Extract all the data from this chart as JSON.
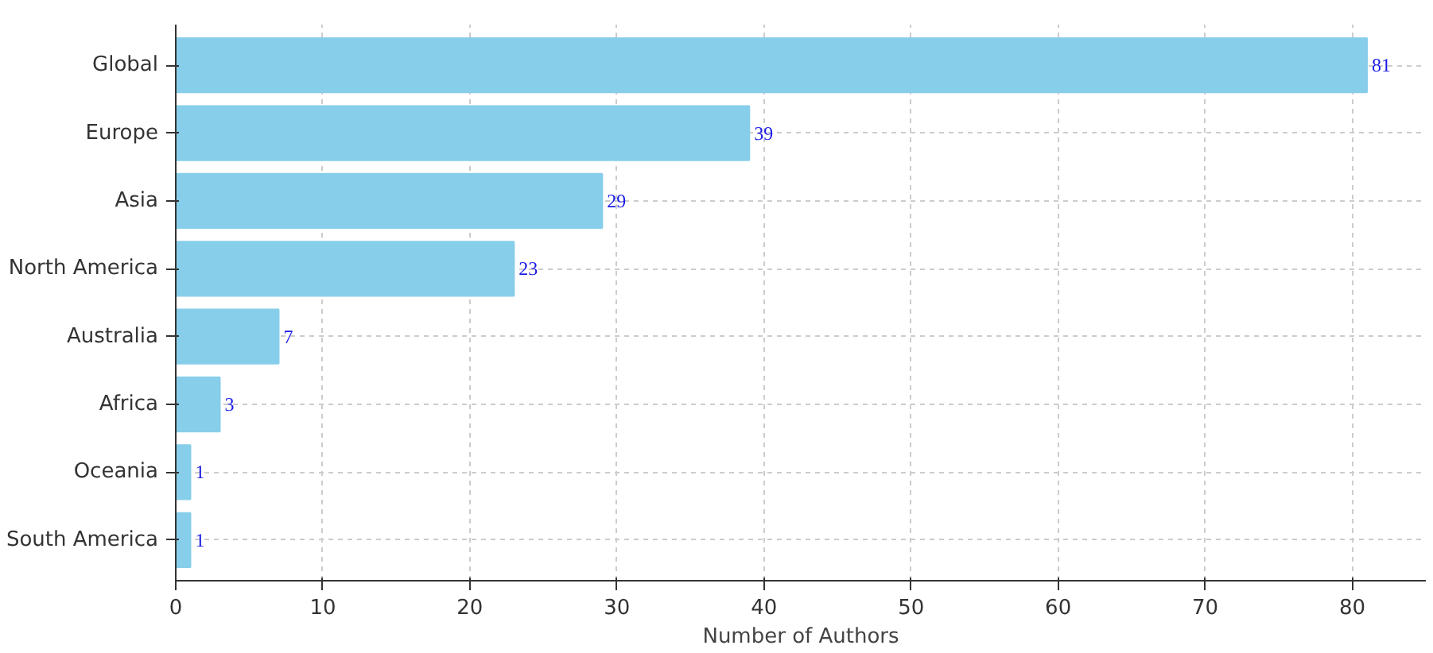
{
  "chart_data": {
    "type": "bar",
    "orientation": "horizontal",
    "xlabel": "Number of Authors",
    "categories": [
      "Global",
      "Europe",
      "Asia",
      "North America",
      "Australia",
      "Africa",
      "Oceania",
      "South America"
    ],
    "values": [
      81,
      39,
      29,
      23,
      7,
      3,
      1,
      1
    ],
    "color": "#87ceeb",
    "xlim": [
      0,
      85
    ],
    "xticks": [
      0,
      10,
      20,
      30,
      40,
      50,
      60,
      70,
      80
    ],
    "grid": true,
    "data_labels": true
  }
}
